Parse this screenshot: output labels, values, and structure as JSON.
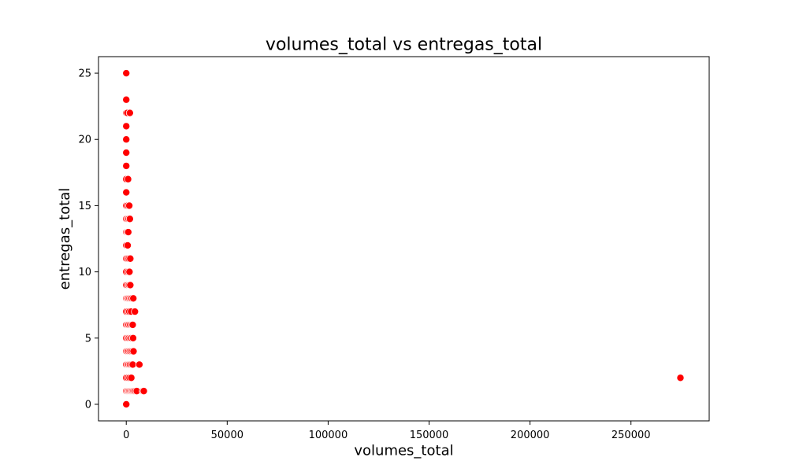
{
  "chart_data": {
    "type": "scatter",
    "title": "volumes_total vs entregas_total",
    "xlabel": "volumes_total",
    "ylabel": "entregas_total",
    "xlim": [
      -13750,
      288750
    ],
    "ylim": [
      -1.25,
      26.25
    ],
    "xticks": [
      0,
      50000,
      100000,
      150000,
      200000,
      250000
    ],
    "xtick_labels": [
      "0",
      "50000",
      "100000",
      "150000",
      "200000",
      "250000"
    ],
    "yticks": [
      0,
      5,
      10,
      15,
      20,
      25
    ],
    "ytick_labels": [
      "0",
      "5",
      "10",
      "15",
      "20",
      "25"
    ],
    "grid": false,
    "marker_color": "#ff0000",
    "marker_edge_color": "#ffffff",
    "points": [
      {
        "x": 0,
        "y": 25
      },
      {
        "x": 0,
        "y": 23
      },
      {
        "x": 0,
        "y": 22
      },
      {
        "x": 500,
        "y": 22
      },
      {
        "x": 1800,
        "y": 22
      },
      {
        "x": 0,
        "y": 21
      },
      {
        "x": 0,
        "y": 20
      },
      {
        "x": 0,
        "y": 19
      },
      {
        "x": 0,
        "y": 18
      },
      {
        "x": 0,
        "y": 17
      },
      {
        "x": 900,
        "y": 17
      },
      {
        "x": 0,
        "y": 16
      },
      {
        "x": 0,
        "y": 15
      },
      {
        "x": 700,
        "y": 15
      },
      {
        "x": 1500,
        "y": 15
      },
      {
        "x": 0,
        "y": 14
      },
      {
        "x": 600,
        "y": 14
      },
      {
        "x": 1200,
        "y": 14
      },
      {
        "x": 1800,
        "y": 14
      },
      {
        "x": 0,
        "y": 13
      },
      {
        "x": 500,
        "y": 13
      },
      {
        "x": 1000,
        "y": 13
      },
      {
        "x": 0,
        "y": 12
      },
      {
        "x": 700,
        "y": 12
      },
      {
        "x": 0,
        "y": 11
      },
      {
        "x": 600,
        "y": 11
      },
      {
        "x": 1300,
        "y": 11
      },
      {
        "x": 2000,
        "y": 11
      },
      {
        "x": 0,
        "y": 10
      },
      {
        "x": 900,
        "y": 10
      },
      {
        "x": 1600,
        "y": 10
      },
      {
        "x": 0,
        "y": 9
      },
      {
        "x": 700,
        "y": 9
      },
      {
        "x": 1400,
        "y": 9
      },
      {
        "x": 2000,
        "y": 9
      },
      {
        "x": 0,
        "y": 8
      },
      {
        "x": 500,
        "y": 8
      },
      {
        "x": 1000,
        "y": 8
      },
      {
        "x": 1600,
        "y": 8
      },
      {
        "x": 2200,
        "y": 8
      },
      {
        "x": 2800,
        "y": 8
      },
      {
        "x": 3500,
        "y": 8
      },
      {
        "x": 0,
        "y": 7
      },
      {
        "x": 800,
        "y": 7
      },
      {
        "x": 1500,
        "y": 7
      },
      {
        "x": 2400,
        "y": 7
      },
      {
        "x": 4300,
        "y": 7
      },
      {
        "x": 0,
        "y": 6
      },
      {
        "x": 600,
        "y": 6
      },
      {
        "x": 1200,
        "y": 6
      },
      {
        "x": 1900,
        "y": 6
      },
      {
        "x": 2600,
        "y": 6
      },
      {
        "x": 3200,
        "y": 6
      },
      {
        "x": 0,
        "y": 5
      },
      {
        "x": 700,
        "y": 5
      },
      {
        "x": 1300,
        "y": 5
      },
      {
        "x": 2000,
        "y": 5
      },
      {
        "x": 2600,
        "y": 5
      },
      {
        "x": 3400,
        "y": 5
      },
      {
        "x": 0,
        "y": 4
      },
      {
        "x": 500,
        "y": 4
      },
      {
        "x": 1100,
        "y": 4
      },
      {
        "x": 1700,
        "y": 4
      },
      {
        "x": 2300,
        "y": 4
      },
      {
        "x": 3000,
        "y": 4
      },
      {
        "x": 3600,
        "y": 4
      },
      {
        "x": 0,
        "y": 3
      },
      {
        "x": 600,
        "y": 3
      },
      {
        "x": 1200,
        "y": 3
      },
      {
        "x": 1800,
        "y": 3
      },
      {
        "x": 2500,
        "y": 3
      },
      {
        "x": 3200,
        "y": 3
      },
      {
        "x": 6500,
        "y": 3
      },
      {
        "x": 0,
        "y": 2
      },
      {
        "x": 800,
        "y": 2
      },
      {
        "x": 1600,
        "y": 2
      },
      {
        "x": 2500,
        "y": 2
      },
      {
        "x": 274500,
        "y": 2
      },
      {
        "x": 0,
        "y": 1
      },
      {
        "x": 500,
        "y": 1
      },
      {
        "x": 1000,
        "y": 1
      },
      {
        "x": 1500,
        "y": 1
      },
      {
        "x": 2000,
        "y": 1
      },
      {
        "x": 2500,
        "y": 1
      },
      {
        "x": 3000,
        "y": 1
      },
      {
        "x": 3500,
        "y": 1
      },
      {
        "x": 4000,
        "y": 1
      },
      {
        "x": 4600,
        "y": 1
      },
      {
        "x": 5200,
        "y": 1
      },
      {
        "x": 8200,
        "y": 1
      },
      {
        "x": 8700,
        "y": 1
      },
      {
        "x": 0,
        "y": 0
      }
    ]
  }
}
